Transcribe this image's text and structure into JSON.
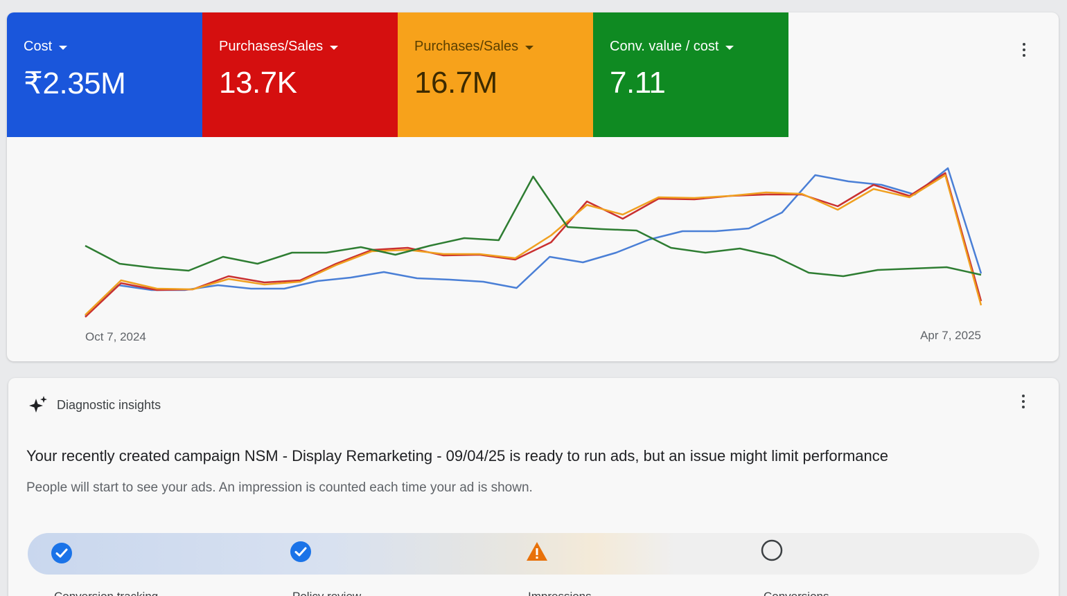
{
  "metrics": [
    {
      "label": "Cost",
      "value": "₹2.35M",
      "color": "#1a56db"
    },
    {
      "label": "Purchases/Sales",
      "value": "13.7K",
      "color": "#d50f0f"
    },
    {
      "label": "Purchases/Sales",
      "value": "16.7M",
      "color": "#f7a21b"
    },
    {
      "label": "Conv. value / cost",
      "value": "7.11",
      "color": "#0f8a22"
    }
  ],
  "chart_data": {
    "type": "line",
    "x_start_label": "Oct 7, 2024",
    "x_end_label": "Apr 7, 2025",
    "series": [
      {
        "color": "#4a7fd6",
        "values": [
          7,
          51,
          44,
          44,
          51,
          46,
          46,
          57,
          62,
          70,
          61,
          59,
          56,
          47,
          92,
          84,
          98,
          117,
          129,
          129,
          133,
          156,
          210,
          201,
          196,
          182,
          220,
          68
        ]
      },
      {
        "color": "#c93030",
        "values": [
          5,
          54,
          44,
          45,
          64,
          55,
          58,
          82,
          102,
          105,
          94,
          95,
          88,
          113,
          172,
          147,
          176,
          175,
          180,
          182,
          182,
          165,
          196,
          180,
          213,
          28
        ]
      },
      {
        "color": "#f0a020",
        "values": [
          8,
          58,
          46,
          45,
          60,
          52,
          56,
          80,
          100,
          102,
          96,
          96,
          90,
          123,
          167,
          153,
          178,
          177,
          180,
          185,
          183,
          160,
          190,
          178,
          210,
          22
        ]
      },
      {
        "color": "#2e7d32",
        "values": [
          108,
          82,
          76,
          72,
          92,
          82,
          98,
          98,
          106,
          95,
          108,
          119,
          116,
          208,
          135,
          132,
          130,
          105,
          98,
          104,
          93,
          69,
          64,
          73,
          75,
          77,
          66
        ]
      }
    ]
  },
  "diagnostic": {
    "heading": "Diagnostic insights",
    "title": "Your recently created campaign NSM - Display Remarketing - 09/04/25 is ready to run ads, but an issue might limit performance",
    "subtitle": "People will start to see your ads. An impression is counted each time your ad is shown.",
    "steps": [
      {
        "label": "Conversion tracking",
        "status": "done"
      },
      {
        "label": "Policy review",
        "status": "done"
      },
      {
        "label": "Impressions",
        "status": "warning"
      },
      {
        "label": "Conversions",
        "status": "pending"
      }
    ]
  },
  "colors": {
    "accent_blue": "#1a73e8",
    "warning_orange": "#e8710a"
  }
}
